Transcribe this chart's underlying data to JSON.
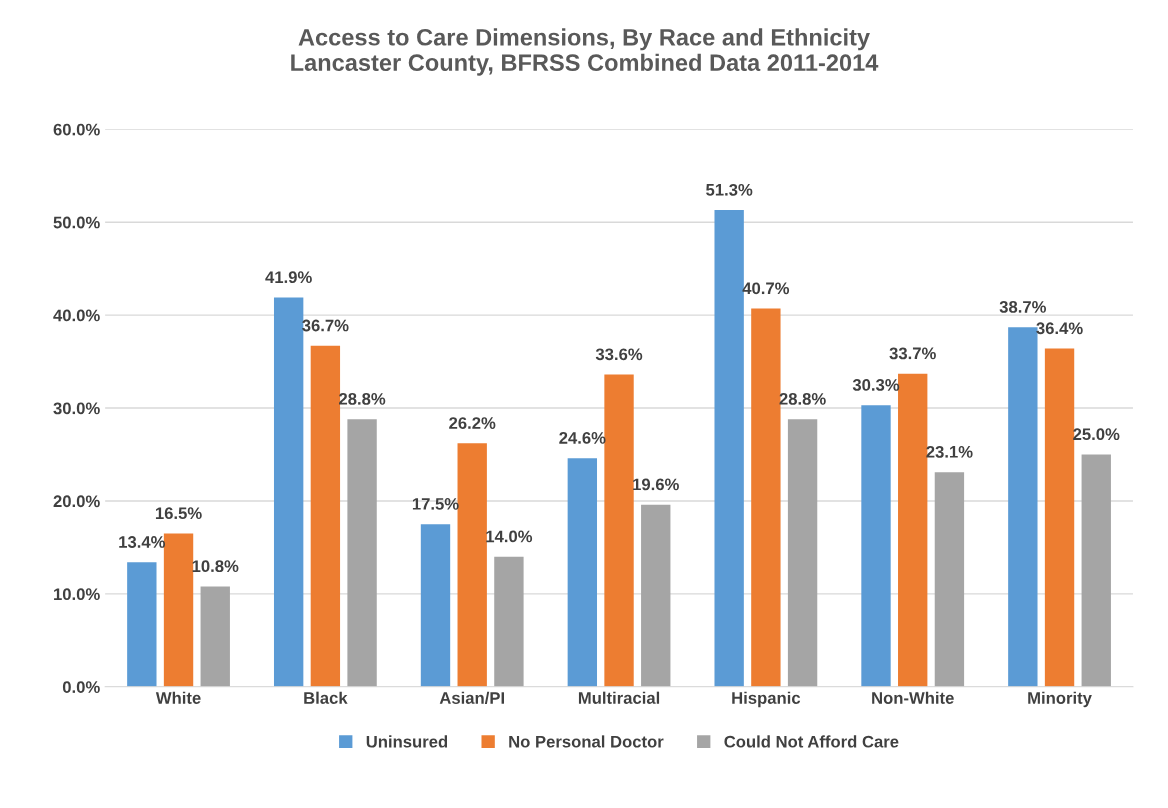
{
  "chart_data": {
    "type": "bar",
    "title": "Access to Care Dimensions, By Race and Ethnicity\nLancaster County, BFRSS Combined Data 2011-2014",
    "categories": [
      "White",
      "Black",
      "Asian/PI",
      "Multiracial",
      "Hispanic",
      "Non-White",
      "Minority"
    ],
    "series": [
      {
        "name": "Uninsured",
        "color": "#5b9bd5",
        "values": [
          13.4,
          41.9,
          17.5,
          24.6,
          51.3,
          30.3,
          38.7
        ],
        "value_labels": [
          "13.4%",
          "41.9%",
          "17.5%",
          "24.6%",
          "51.3%",
          "30.3%",
          "38.7%"
        ]
      },
      {
        "name": "No Personal Doctor",
        "color": "#ed7d31",
        "values": [
          16.5,
          36.7,
          26.2,
          33.6,
          40.7,
          33.7,
          36.4
        ],
        "value_labels": [
          "16.5%",
          "36.7%",
          "26.2%",
          "33.6%",
          "40.7%",
          "33.7%",
          "36.4%"
        ]
      },
      {
        "name": "Could Not Afford Care",
        "color": "#a5a5a5",
        "values": [
          10.8,
          28.8,
          14.0,
          19.6,
          28.8,
          23.1,
          25.0
        ],
        "value_labels": [
          "10.8%",
          "28.8%",
          "14.0%",
          "19.6%",
          "28.8%",
          "23.1%",
          "25.0%"
        ]
      }
    ],
    "ylim": [
      0,
      60
    ],
    "yticks": [
      {
        "value": 0,
        "label": "0.0%"
      },
      {
        "value": 10,
        "label": "10.0%"
      },
      {
        "value": 20,
        "label": "20.0%"
      },
      {
        "value": 30,
        "label": "30.0%"
      },
      {
        "value": 40,
        "label": "40.0%"
      },
      {
        "value": 50,
        "label": "50.0%"
      },
      {
        "value": 60,
        "label": "60.0%"
      }
    ],
    "grid": "y",
    "legend": "bottom"
  }
}
